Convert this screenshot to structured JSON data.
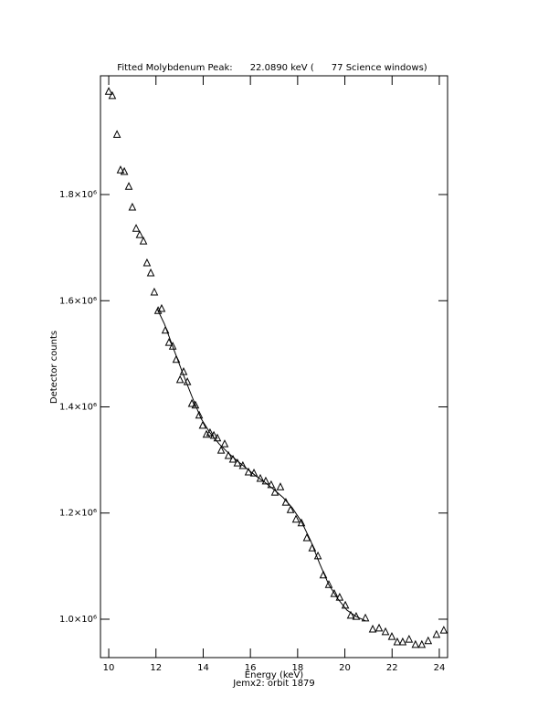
{
  "chart_data": {
    "type": "scatter",
    "title": "Fitted Molybdenum Peak:      22.0890 keV (      77 Science windows)",
    "xlabel": "Energy (keV)",
    "subtitle": "Jemx2: orbit 1879",
    "ylabel": "Detector counts",
    "xlim": [
      9.65,
      24.35
    ],
    "ylim": [
      927700,
      2023700
    ],
    "xticks": [
      10,
      12,
      14,
      16,
      18,
      20,
      22,
      24
    ],
    "yticks": [
      {
        "value": 1000000,
        "label": "1.0×10⁶"
      },
      {
        "value": 1200000,
        "label": "1.2×10⁶"
      },
      {
        "value": 1400000,
        "label": "1.4×10⁶"
      },
      {
        "value": 1600000,
        "label": "1.6×10⁶"
      },
      {
        "value": 1800000,
        "label": "1.8×10⁶"
      }
    ],
    "color": "#000000",
    "series": [
      {
        "style": "triangle",
        "x": [
          10.0,
          10.15,
          10.35,
          10.5,
          10.66,
          10.85,
          11.0,
          11.16,
          11.31,
          11.47,
          11.62,
          11.78,
          11.93,
          12.09,
          12.24,
          12.4,
          12.55,
          12.71,
          12.86,
          13.02,
          13.17,
          13.33,
          13.52,
          13.67,
          13.83,
          13.98,
          14.14,
          14.29,
          14.45,
          14.6,
          14.76,
          14.91,
          15.07,
          15.26,
          15.45,
          15.68,
          15.92,
          16.15,
          16.42,
          16.65,
          16.88,
          17.04,
          17.27,
          17.5,
          17.7,
          17.93,
          18.16,
          18.39,
          18.62,
          18.86,
          19.09,
          19.32,
          19.55,
          19.78,
          20.02,
          20.25,
          20.48,
          20.87,
          21.18,
          21.45,
          21.72,
          21.99,
          22.22,
          22.45,
          22.72,
          22.99,
          23.26,
          23.53,
          23.88,
          24.19
        ],
        "values": [
          1994000,
          1986000,
          1913000,
          1846000,
          1843000,
          1815000,
          1776000,
          1736000,
          1724000,
          1712000,
          1671000,
          1652000,
          1616000,
          1581000,
          1585000,
          1544000,
          1521000,
          1514000,
          1489000,
          1451000,
          1466000,
          1447000,
          1406000,
          1403000,
          1384000,
          1365000,
          1348000,
          1351000,
          1346000,
          1341000,
          1318000,
          1330000,
          1308000,
          1301000,
          1294000,
          1289000,
          1277000,
          1275000,
          1265000,
          1260000,
          1253000,
          1239000,
          1249000,
          1220000,
          1206000,
          1188000,
          1181000,
          1153000,
          1134000,
          1119000,
          1083000,
          1065000,
          1048000,
          1041000,
          1026000,
          1007000,
          1005000,
          1002000,
          981000,
          983000,
          976000,
          967000,
          957000,
          957000,
          962000,
          952000,
          952000,
          959000,
          971000,
          979000
        ]
      },
      {
        "style": "line",
        "x": [
          12.05,
          12.36,
          12.75,
          13.13,
          13.52,
          13.91,
          14.29,
          14.68,
          15.07,
          15.45,
          15.84,
          16.23,
          16.61,
          17.0,
          17.39,
          17.77,
          18.16,
          18.55,
          18.93,
          19.32,
          19.71,
          20.09,
          20.48,
          20.87
        ],
        "values": [
          1585000,
          1556000,
          1509000,
          1464000,
          1420000,
          1378000,
          1351000,
          1330000,
          1313000,
          1298000,
          1284000,
          1270000,
          1258000,
          1244000,
          1229000,
          1210000,
          1184000,
          1148000,
          1105000,
          1065000,
          1038000,
          1017000,
          1005000,
          997000
        ]
      }
    ]
  }
}
